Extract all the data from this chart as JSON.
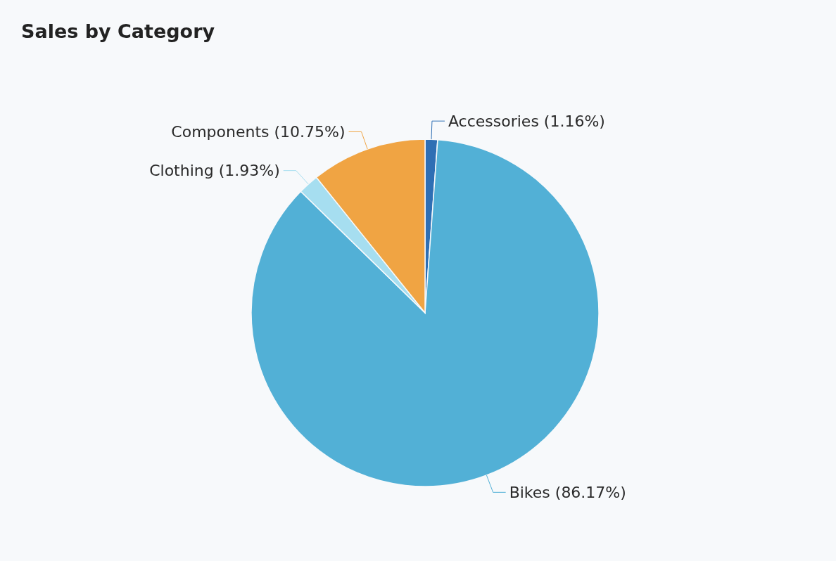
{
  "chart_data": {
    "type": "pie",
    "title": "Sales by Category",
    "categories": [
      "Accessories",
      "Bikes",
      "Clothing",
      "Components"
    ],
    "values": [
      1.16,
      86.17,
      1.93,
      10.75
    ],
    "value_labels": [
      "(1.16%)",
      "(86.17%)",
      "(1.93%)",
      "(10.75%)"
    ],
    "colors": [
      "#2e6fb4",
      "#52b0d6",
      "#a6def0",
      "#f0a443"
    ],
    "legend": false
  }
}
